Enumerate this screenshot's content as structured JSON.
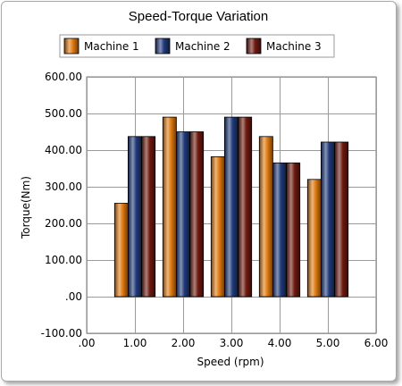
{
  "chart_data": {
    "type": "bar",
    "title": "Speed-Torque Variation",
    "xlabel": "Speed (rpm)",
    "ylabel": "Torque(Nm)",
    "x": [
      1.0,
      2.0,
      3.0,
      4.0,
      5.0
    ],
    "series": [
      {
        "name": "Machine 1",
        "color": "#e07a10",
        "values": [
          255,
          490,
          382,
          437,
          320
        ]
      },
      {
        "name": "Machine 2",
        "color": "#1f3a7a",
        "values": [
          437,
          450,
          490,
          365,
          422
        ]
      },
      {
        "name": "Machine 3",
        "color": "#6e1a10",
        "values": [
          437,
          450,
          490,
          365,
          422
        ]
      }
    ],
    "xlim": [
      0,
      6
    ],
    "ylim": [
      -100,
      600
    ],
    "x_ticks": [
      ".00",
      "1.00",
      "2.00",
      "3.00",
      "4.00",
      "5.00",
      "6.00"
    ],
    "y_ticks": [
      "-100.00",
      ".00",
      "100.00",
      "200.00",
      "300.00",
      "400.00",
      "500.00",
      "600.00"
    ],
    "grid": true,
    "legend_position": "top"
  }
}
